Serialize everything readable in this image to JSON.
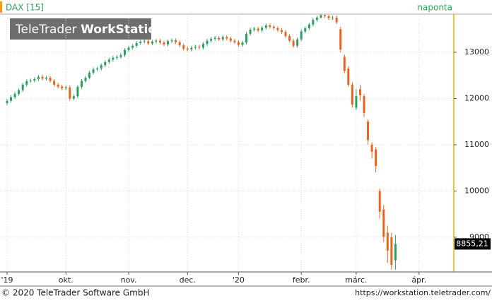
{
  "chart_data": {
    "type": "candlestick",
    "title": "DAX [15]",
    "subtitle": "naponta",
    "categories": [
      "'19",
      null,
      null,
      null,
      null,
      null,
      null,
      null,
      null,
      null,
      null,
      null,
      null,
      null,
      null,
      "okt.",
      null,
      null,
      null,
      null,
      null,
      null,
      null,
      null,
      null,
      null,
      null,
      null,
      null,
      null,
      null,
      "nov.",
      null,
      null,
      null,
      null,
      null,
      null,
      null,
      null,
      null,
      null,
      null,
      null,
      null,
      null,
      "dec.",
      null,
      null,
      null,
      null,
      null,
      null,
      null,
      null,
      null,
      null,
      null,
      null,
      "'20",
      null,
      null,
      null,
      null,
      null,
      null,
      null,
      null,
      null,
      null,
      null,
      null,
      null,
      null,
      null,
      "febr.",
      null,
      null,
      null,
      null,
      null,
      null,
      null,
      null,
      null,
      null,
      null,
      null,
      null,
      "márc.",
      null,
      null,
      null,
      null,
      null,
      null,
      null,
      null,
      null,
      null,
      null,
      null,
      null,
      null,
      null,
      "ápr.",
      null,
      null,
      null,
      null,
      null,
      null
    ],
    "open": [
      11900,
      11950,
      12030,
      12100,
      12180,
      12300,
      12375,
      12390,
      12420,
      12470,
      12430,
      12450,
      12380,
      12300,
      12260,
      12220,
      12240,
      12000,
      12050,
      12250,
      12380,
      12450,
      12560,
      12630,
      12650,
      12720,
      12790,
      12840,
      12880,
      12900,
      12940,
      13050,
      13100,
      13140,
      13200,
      13230,
      13240,
      13190,
      13230,
      13250,
      13210,
      13170,
      13240,
      13260,
      13220,
      13150,
      13080,
      13060,
      13100,
      13120,
      13100,
      13180,
      13250,
      13290,
      13310,
      13280,
      13330,
      13300,
      13250,
      13220,
      13160,
      13210,
      13400,
      13490,
      13510,
      13470,
      13530,
      13580,
      13550,
      13520,
      13480,
      13440,
      13350,
      13250,
      13140,
      13280,
      13450,
      13520,
      13600,
      13700,
      13750,
      13800,
      13780,
      13740,
      13750,
      13500,
      12900,
      12650,
      12300,
      11800,
      12200,
      12050,
      11500,
      11000,
      10900,
      10000,
      9600,
      9100,
      9000,
      8500,
      null,
      null,
      null,
      null,
      null,
      null,
      null,
      null,
      null,
      null,
      null,
      null
    ],
    "high": [
      11990,
      12070,
      12140,
      12220,
      12340,
      12415,
      12430,
      12460,
      12510,
      12510,
      12490,
      12490,
      12420,
      12340,
      12300,
      12280,
      12280,
      12090,
      12290,
      12420,
      12490,
      12600,
      12670,
      12690,
      12760,
      12830,
      12880,
      12920,
      12940,
      12980,
      13090,
      13140,
      13180,
      13240,
      13270,
      13280,
      13280,
      13270,
      13290,
      13290,
      13250,
      13280,
      13300,
      13300,
      13260,
      13190,
      13120,
      13140,
      13160,
      13160,
      13220,
      13290,
      13330,
      13350,
      13350,
      13370,
      13370,
      13340,
      13290,
      13260,
      13250,
      13440,
      13530,
      13550,
      13550,
      13570,
      13620,
      13620,
      13590,
      13560,
      13520,
      13480,
      13390,
      13290,
      13320,
      13490,
      13560,
      13640,
      13740,
      13790,
      13820,
      13820,
      13810,
      13790,
      13790,
      13550,
      12950,
      12700,
      12350,
      12200,
      12300,
      12100,
      11550,
      11050,
      10950,
      10050,
      9700,
      9250,
      9100,
      9050,
      null,
      null,
      null,
      null,
      null,
      null,
      null,
      null,
      null,
      null,
      null,
      null
    ],
    "low": [
      11860,
      11910,
      11990,
      12060,
      12140,
      12260,
      12335,
      12350,
      12380,
      12390,
      12390,
      12340,
      12260,
      12220,
      12180,
      12180,
      11960,
      11960,
      12010,
      12210,
      12340,
      12410,
      12520,
      12590,
      12610,
      12680,
      12750,
      12800,
      12840,
      12860,
      12900,
      13010,
      13060,
      13100,
      13160,
      13190,
      13150,
      13150,
      13190,
      13170,
      13130,
      13130,
      13200,
      13180,
      13110,
      13040,
      13020,
      13020,
      13060,
      13060,
      13060,
      13140,
      13210,
      13250,
      13240,
      13240,
      13260,
      13210,
      13180,
      13120,
      13120,
      13170,
      13360,
      13450,
      13430,
      13430,
      13490,
      13510,
      13480,
      13440,
      13400,
      13310,
      13210,
      13100,
      13100,
      13240,
      13410,
      13480,
      13560,
      13660,
      13730,
      13740,
      13700,
      13700,
      13610,
      13000,
      12550,
      12250,
      11800,
      11750,
      11950,
      11600,
      11000,
      10700,
      10400,
      9400,
      8900,
      8450,
      8300,
      8300,
      null,
      null,
      null,
      null,
      null,
      null,
      null,
      null,
      null,
      null,
      null,
      null
    ],
    "close": [
      11950,
      12030,
      12100,
      12180,
      12300,
      12375,
      12390,
      12420,
      12470,
      12430,
      12450,
      12380,
      12300,
      12260,
      12220,
      12240,
      12000,
      12050,
      12250,
      12380,
      12450,
      12560,
      12630,
      12650,
      12720,
      12790,
      12840,
      12880,
      12900,
      12940,
      13050,
      13100,
      13140,
      13200,
      13230,
      13240,
      13190,
      13230,
      13250,
      13210,
      13170,
      13240,
      13260,
      13220,
      13150,
      13080,
      13060,
      13100,
      13120,
      13100,
      13180,
      13250,
      13290,
      13310,
      13280,
      13330,
      13300,
      13250,
      13220,
      13160,
      13210,
      13400,
      13490,
      13510,
      13470,
      13530,
      13580,
      13550,
      13520,
      13480,
      13440,
      13350,
      13250,
      13140,
      13280,
      13450,
      13520,
      13600,
      13700,
      13750,
      13800,
      13780,
      13740,
      13750,
      13650,
      13060,
      12600,
      12300,
      11870,
      12050,
      12070,
      11690,
      11100,
      10850,
      10540,
      9550,
      9010,
      8710,
      8400,
      8855.21,
      null,
      null,
      null,
      null,
      null,
      null,
      null,
      null,
      null,
      null,
      null,
      null
    ],
    "up_color": "#2e9e5e",
    "down_color": "#e8641e",
    "ylim": [
      8250,
      13825
    ],
    "yticks": [
      9000,
      10000,
      11000,
      12000,
      13000
    ],
    "grid": true,
    "last_price": {
      "value": 8855.21,
      "label": "8855,21"
    }
  },
  "watermark": {
    "brand": "TeleTrader",
    "product": "WorkStation"
  },
  "footer": {
    "copyright": "© 2020 TeleTrader Software GmbH",
    "url": "https://workstation.teletrader.com/"
  }
}
